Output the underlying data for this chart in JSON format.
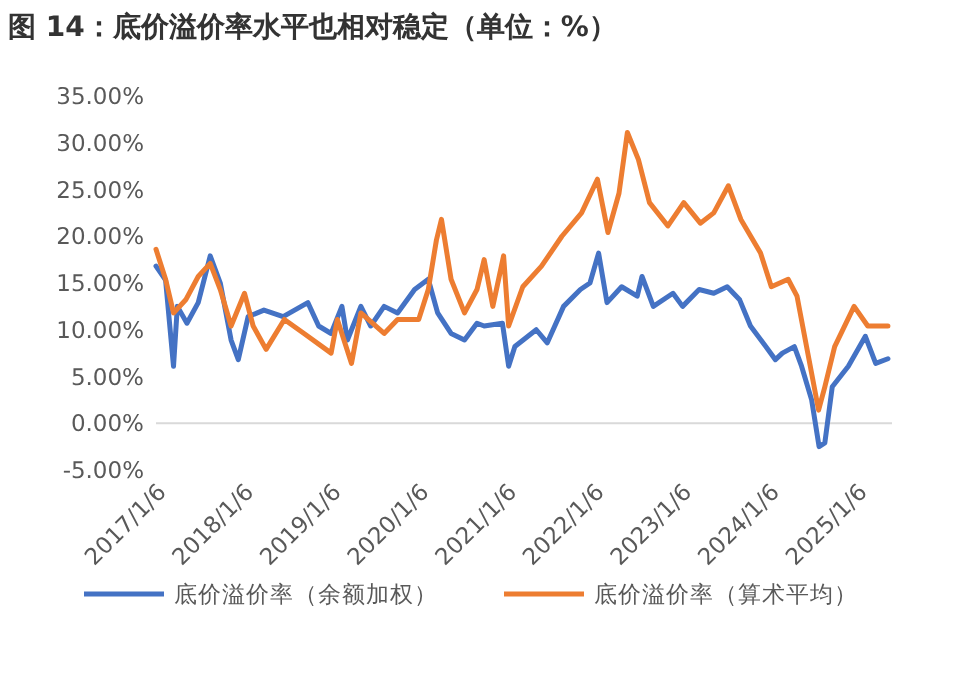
{
  "chart_data": {
    "type": "line",
    "title": "图 14：底价溢价率水平也相对稳定（单位：%）",
    "xlim": [
      "2017-01-06",
      "2025-06-01"
    ],
    "xticks": [
      {
        "value": "2017-01-06",
        "label": "2017/1/6"
      },
      {
        "value": "2018-01-06",
        "label": "2018/1/6"
      },
      {
        "value": "2019-01-06",
        "label": "2019/1/6"
      },
      {
        "value": "2020-01-06",
        "label": "2020/1/6"
      },
      {
        "value": "2021-01-06",
        "label": "2021/1/6"
      },
      {
        "value": "2022-01-06",
        "label": "2022/1/6"
      },
      {
        "value": "2023-01-06",
        "label": "2023/1/6"
      },
      {
        "value": "2024-01-06",
        "label": "2024/1/6"
      },
      {
        "value": "2025-01-06",
        "label": "2025/1/6"
      }
    ],
    "ylim": [
      -5,
      35
    ],
    "yticks": [
      {
        "value": -5,
        "label": "-5.00%"
      },
      {
        "value": 0,
        "label": "0.00%"
      },
      {
        "value": 5,
        "label": "5.00%"
      },
      {
        "value": 10,
        "label": "10.00%"
      },
      {
        "value": 15,
        "label": "15.00%"
      },
      {
        "value": 20,
        "label": "20.00%"
      },
      {
        "value": 25,
        "label": "25.00%"
      },
      {
        "value": 30,
        "label": "30.00%"
      },
      {
        "value": 35,
        "label": "35.00%"
      }
    ],
    "grid": false,
    "legend": "bottom",
    "marker": "none",
    "line_style": "solid",
    "series": [
      {
        "name": "底价溢价率（余额加权）",
        "color": "#4472c4",
        "x": [
          "2017-01-06",
          "2017-02-15",
          "2017-03-20",
          "2017-04-05",
          "2017-05-15",
          "2017-07-01",
          "2017-08-20",
          "2017-10-01",
          "2017-11-15",
          "2017-12-15",
          "2018-01-25",
          "2018-04-01",
          "2018-06-20",
          "2018-10-01",
          "2018-11-15",
          "2019-01-06",
          "2019-02-20",
          "2019-03-15",
          "2019-05-10",
          "2019-06-20",
          "2019-08-15",
          "2019-10-10",
          "2019-12-20",
          "2020-02-15",
          "2020-03-25",
          "2020-05-20",
          "2020-07-15",
          "2020-09-05",
          "2020-10-05",
          "2020-12-20",
          "2021-01-15",
          "2021-02-10",
          "2021-05-10",
          "2021-06-25",
          "2021-09-01",
          "2021-11-10",
          "2021-12-20",
          "2022-01-25",
          "2022-03-01",
          "2022-05-01",
          "2022-07-05",
          "2022-07-25",
          "2022-09-10",
          "2022-12-01",
          "2023-01-10",
          "2023-03-20",
          "2023-05-20",
          "2023-07-15",
          "2023-09-05",
          "2023-10-20",
          "2024-01-01",
          "2024-02-01",
          "2024-03-01",
          "2024-04-20",
          "2024-05-20",
          "2024-07-01",
          "2024-08-01",
          "2024-08-25",
          "2024-09-25",
          "2024-12-01",
          "2025-02-10",
          "2025-03-25",
          "2025-05-15"
        ],
        "values": [
          16.8,
          15.3,
          6.1,
          12.5,
          10.7,
          12.9,
          17.9,
          15.0,
          8.9,
          6.8,
          11.4,
          12.1,
          11.4,
          12.9,
          10.4,
          9.6,
          12.5,
          8.9,
          12.5,
          10.4,
          12.5,
          11.8,
          14.3,
          15.4,
          11.8,
          9.6,
          8.9,
          10.7,
          10.4,
          10.7,
          6.1,
          8.2,
          10.0,
          8.6,
          12.5,
          14.3,
          15.0,
          18.2,
          12.9,
          14.6,
          13.6,
          15.7,
          12.5,
          13.9,
          12.5,
          14.3,
          13.9,
          14.6,
          13.2,
          10.4,
          7.9,
          6.8,
          7.5,
          8.2,
          6.1,
          2.5,
          -2.5,
          -2.1,
          3.9,
          6.1,
          9.3,
          6.4,
          6.9
        ]
      },
      {
        "name": "底价溢价率（算术平均）",
        "color": "#ed7d31",
        "x": [
          "2017-01-06",
          "2017-02-15",
          "2017-03-20",
          "2017-05-10",
          "2017-07-01",
          "2017-08-20",
          "2017-10-01",
          "2017-11-15",
          "2018-01-10",
          "2018-02-15",
          "2018-04-10",
          "2018-06-25",
          "2018-09-15",
          "2019-01-06",
          "2019-02-01",
          "2019-04-01",
          "2019-05-10",
          "2019-08-15",
          "2019-10-10",
          "2020-01-06",
          "2020-02-15",
          "2020-03-20",
          "2020-04-10",
          "2020-05-20",
          "2020-07-15",
          "2020-09-05",
          "2020-10-05",
          "2020-11-10",
          "2020-12-25",
          "2021-01-15",
          "2021-03-15",
          "2021-06-01",
          "2021-08-25",
          "2021-11-15",
          "2022-01-20",
          "2022-03-05",
          "2022-04-20",
          "2022-05-25",
          "2022-07-10",
          "2022-08-25",
          "2022-11-10",
          "2023-01-15",
          "2023-03-25",
          "2023-05-20",
          "2023-07-20",
          "2023-09-10",
          "2023-12-01",
          "2024-01-15",
          "2024-03-25",
          "2024-05-01",
          "2024-06-15",
          "2024-07-30",
          "2024-08-25",
          "2024-10-05",
          "2024-12-25",
          "2025-02-20",
          "2025-05-15"
        ],
        "values": [
          18.6,
          15.4,
          11.8,
          13.2,
          15.7,
          17.1,
          14.3,
          10.4,
          13.9,
          10.4,
          7.9,
          11.1,
          9.6,
          7.5,
          11.1,
          6.4,
          11.8,
          9.6,
          11.1,
          11.1,
          14.3,
          19.6,
          21.8,
          15.4,
          11.8,
          14.3,
          17.5,
          12.5,
          17.9,
          10.4,
          14.6,
          16.8,
          20.0,
          22.5,
          26.1,
          20.4,
          24.6,
          31.1,
          28.2,
          23.6,
          21.1,
          23.6,
          21.4,
          22.5,
          25.4,
          21.8,
          18.2,
          14.6,
          15.4,
          13.6,
          7.5,
          1.4,
          3.9,
          8.2,
          12.5,
          10.4,
          10.4
        ]
      }
    ]
  }
}
